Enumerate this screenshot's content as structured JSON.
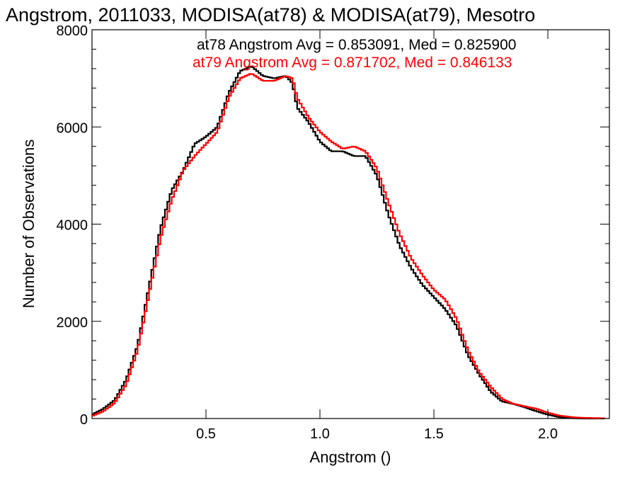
{
  "chart_data": {
    "type": "line",
    "step": true,
    "title": "Angstrom, 2011033, MODISA(at78) & MODISA(at79), Mesotro",
    "xlabel": "Angstrom ()",
    "ylabel": "Number of Observations",
    "xlim": [
      0.0,
      2.27
    ],
    "ylim": [
      0,
      8000
    ],
    "x_ticks": [
      0.5,
      1.0,
      1.5,
      2.0
    ],
    "x_tick_labels": [
      "0.5",
      "1.0",
      "1.5",
      "2.0"
    ],
    "y_ticks": [
      0,
      2000,
      4000,
      6000,
      8000
    ],
    "y_tick_labels": [
      "0",
      "2000",
      "4000",
      "6000",
      "8000"
    ],
    "annotations": [
      {
        "text": "at78 Angstrom Avg = 0.853091, Med = 0.825900",
        "color": "#000000"
      },
      {
        "text": "at79 Angstrom Avg = 0.871702, Med = 0.846133",
        "color": "#ff0000"
      }
    ],
    "series": [
      {
        "name": "at78",
        "color": "#000000",
        "points": [
          [
            0.0,
            80
          ],
          [
            0.05,
            200
          ],
          [
            0.1,
            380
          ],
          [
            0.15,
            800
          ],
          [
            0.2,
            1500
          ],
          [
            0.25,
            2700
          ],
          [
            0.3,
            3900
          ],
          [
            0.35,
            4700
          ],
          [
            0.4,
            5100
          ],
          [
            0.45,
            5650
          ],
          [
            0.5,
            5800
          ],
          [
            0.55,
            6000
          ],
          [
            0.6,
            6700
          ],
          [
            0.65,
            7150
          ],
          [
            0.7,
            7250
          ],
          [
            0.75,
            7050
          ],
          [
            0.8,
            7000
          ],
          [
            0.85,
            7050
          ],
          [
            0.88,
            6900
          ],
          [
            0.9,
            6400
          ],
          [
            0.95,
            6100
          ],
          [
            1.0,
            5700
          ],
          [
            1.05,
            5500
          ],
          [
            1.1,
            5500
          ],
          [
            1.15,
            5400
          ],
          [
            1.2,
            5400
          ],
          [
            1.25,
            5000
          ],
          [
            1.3,
            4200
          ],
          [
            1.35,
            3550
          ],
          [
            1.4,
            3100
          ],
          [
            1.45,
            2750
          ],
          [
            1.5,
            2500
          ],
          [
            1.55,
            2250
          ],
          [
            1.6,
            1900
          ],
          [
            1.65,
            1300
          ],
          [
            1.7,
            900
          ],
          [
            1.75,
            550
          ],
          [
            1.8,
            350
          ],
          [
            1.85,
            300
          ],
          [
            1.9,
            230
          ],
          [
            1.95,
            150
          ],
          [
            2.0,
            80
          ],
          [
            2.05,
            30
          ],
          [
            2.1,
            10
          ],
          [
            2.15,
            0
          ],
          [
            2.25,
            0
          ]
        ]
      },
      {
        "name": "at79",
        "color": "#ff0000",
        "points": [
          [
            0.0,
            50
          ],
          [
            0.05,
            150
          ],
          [
            0.1,
            320
          ],
          [
            0.15,
            700
          ],
          [
            0.2,
            1400
          ],
          [
            0.25,
            2550
          ],
          [
            0.3,
            3700
          ],
          [
            0.35,
            4500
          ],
          [
            0.4,
            5100
          ],
          [
            0.45,
            5400
          ],
          [
            0.5,
            5650
          ],
          [
            0.55,
            5900
          ],
          [
            0.6,
            6600
          ],
          [
            0.65,
            7000
          ],
          [
            0.7,
            7100
          ],
          [
            0.75,
            6950
          ],
          [
            0.8,
            6950
          ],
          [
            0.85,
            7050
          ],
          [
            0.88,
            7000
          ],
          [
            0.9,
            6600
          ],
          [
            0.95,
            6200
          ],
          [
            1.0,
            5900
          ],
          [
            1.05,
            5700
          ],
          [
            1.1,
            5550
          ],
          [
            1.15,
            5600
          ],
          [
            1.2,
            5500
          ],
          [
            1.25,
            5150
          ],
          [
            1.3,
            4450
          ],
          [
            1.35,
            3800
          ],
          [
            1.4,
            3300
          ],
          [
            1.45,
            2950
          ],
          [
            1.5,
            2650
          ],
          [
            1.55,
            2450
          ],
          [
            1.6,
            2050
          ],
          [
            1.65,
            1400
          ],
          [
            1.7,
            950
          ],
          [
            1.75,
            650
          ],
          [
            1.8,
            400
          ],
          [
            1.85,
            300
          ],
          [
            1.9,
            250
          ],
          [
            1.95,
            200
          ],
          [
            2.0,
            120
          ],
          [
            2.05,
            60
          ],
          [
            2.1,
            30
          ],
          [
            2.15,
            15
          ],
          [
            2.25,
            5
          ]
        ]
      }
    ]
  }
}
